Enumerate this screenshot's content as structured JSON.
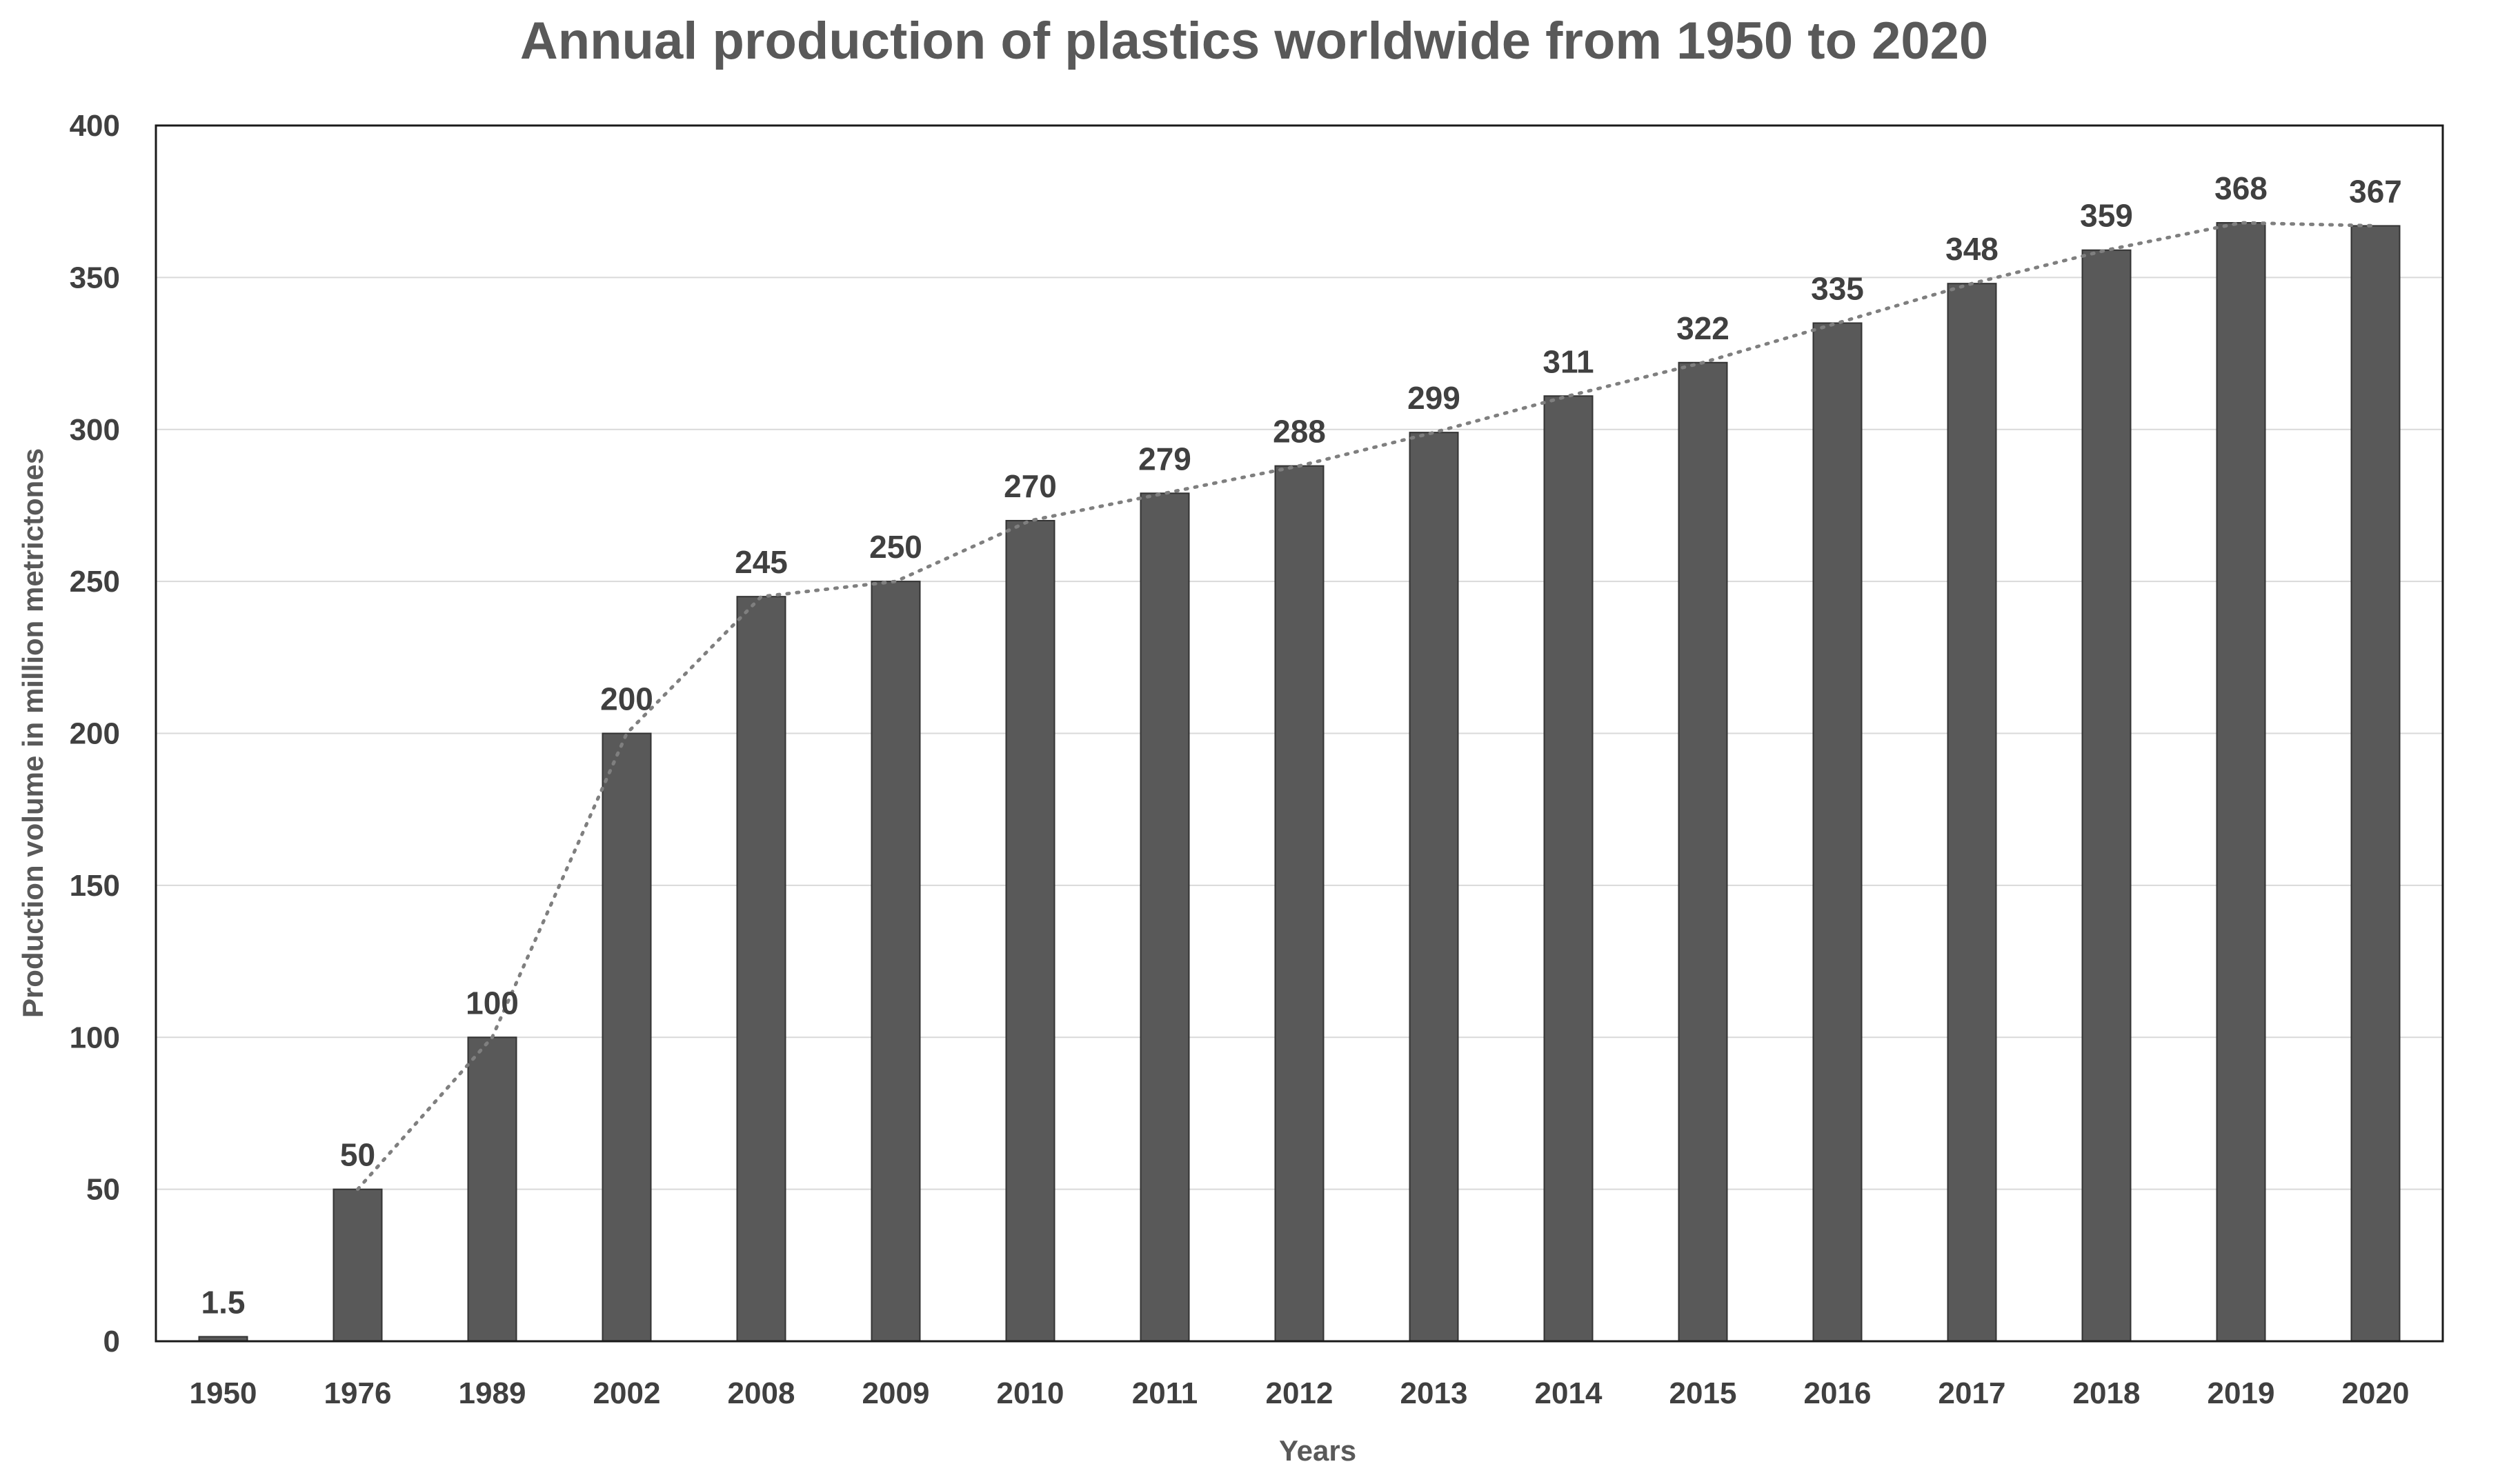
{
  "chart_data": {
    "type": "bar",
    "title": "Annual production of plastics worldwide from 1950 to 2020",
    "xlabel": "Years",
    "ylabel": "Production volume in million metrictones",
    "categories": [
      "1950",
      "1976",
      "1989",
      "2002",
      "2008",
      "2009",
      "2010",
      "2011",
      "2012",
      "2013",
      "2014",
      "2015",
      "2016",
      "2017",
      "2018",
      "2019",
      "2020"
    ],
    "values": [
      1.5,
      50,
      100,
      200,
      245,
      250,
      270,
      279,
      288,
      299,
      311,
      322,
      335,
      348,
      359,
      368,
      367
    ],
    "value_labels": [
      "1.5",
      "50",
      "100",
      "200",
      "245",
      "250",
      "270",
      "279",
      "288",
      "299",
      "311",
      "322",
      "335",
      "348",
      "359",
      "368",
      "367"
    ],
    "ylim": [
      0,
      400
    ],
    "yticks": [
      0,
      50,
      100,
      150,
      200,
      250,
      300,
      350,
      400
    ],
    "grid": true,
    "legend": "none",
    "trendline": "dotted",
    "colors": {
      "bar": "#595959",
      "trendline": "#7f7f7f",
      "grid": "#d9d9d9",
      "text": "#404040"
    }
  }
}
